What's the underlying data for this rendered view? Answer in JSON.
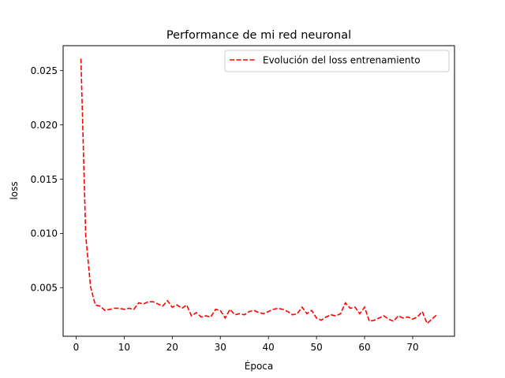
{
  "chart_data": {
    "type": "line",
    "title": "Performance de mi red neuronal",
    "xlabel": "Época",
    "ylabel": "loss",
    "xlim": [
      -2.7,
      78.7
    ],
    "ylim": [
      0.00052,
      0.0273
    ],
    "xticks": [
      0,
      10,
      20,
      30,
      40,
      50,
      60,
      70
    ],
    "yticks": [
      0.005,
      0.01,
      0.015,
      0.02,
      0.025
    ],
    "ytick_labels": [
      "0.005",
      "0.010",
      "0.015",
      "0.020",
      "0.025"
    ],
    "grid": false,
    "legend": {
      "position": "upper right"
    },
    "series": [
      {
        "name": "Evolución del loss entrenamiento",
        "color": "#ff0000",
        "linestyle": "dashed",
        "x": [
          1,
          2,
          3,
          4,
          5,
          6,
          7,
          8,
          9,
          10,
          11,
          12,
          13,
          14,
          15,
          16,
          17,
          18,
          19,
          20,
          21,
          22,
          23,
          24,
          25,
          26,
          27,
          28,
          29,
          30,
          31,
          32,
          33,
          34,
          35,
          36,
          37,
          38,
          39,
          40,
          41,
          42,
          43,
          44,
          45,
          46,
          47,
          48,
          49,
          50,
          51,
          52,
          53,
          54,
          55,
          56,
          57,
          58,
          59,
          60,
          61,
          62,
          63,
          64,
          65,
          66,
          67,
          68,
          69,
          70,
          71,
          72,
          73,
          74,
          75
        ],
        "y": [
          0.0261,
          0.0098,
          0.0051,
          0.0034,
          0.0033,
          0.0029,
          0.003,
          0.0031,
          0.0031,
          0.003,
          0.0031,
          0.003,
          0.0036,
          0.0035,
          0.0037,
          0.0037,
          0.0035,
          0.0033,
          0.0038,
          0.0032,
          0.0034,
          0.0031,
          0.0034,
          0.0024,
          0.0027,
          0.0023,
          0.0024,
          0.0023,
          0.003,
          0.0029,
          0.0022,
          0.003,
          0.0025,
          0.0026,
          0.0025,
          0.0028,
          0.0029,
          0.0027,
          0.0026,
          0.0028,
          0.003,
          0.0031,
          0.003,
          0.0028,
          0.0025,
          0.0026,
          0.0032,
          0.0026,
          0.0029,
          0.0022,
          0.002,
          0.0023,
          0.0025,
          0.0024,
          0.0026,
          0.0036,
          0.0031,
          0.0032,
          0.0026,
          0.0032,
          0.0019,
          0.002,
          0.0022,
          0.0024,
          0.0021,
          0.0019,
          0.0024,
          0.0022,
          0.0023,
          0.0021,
          0.0023,
          0.0028,
          0.0017,
          0.0021,
          0.0025
        ]
      }
    ]
  }
}
